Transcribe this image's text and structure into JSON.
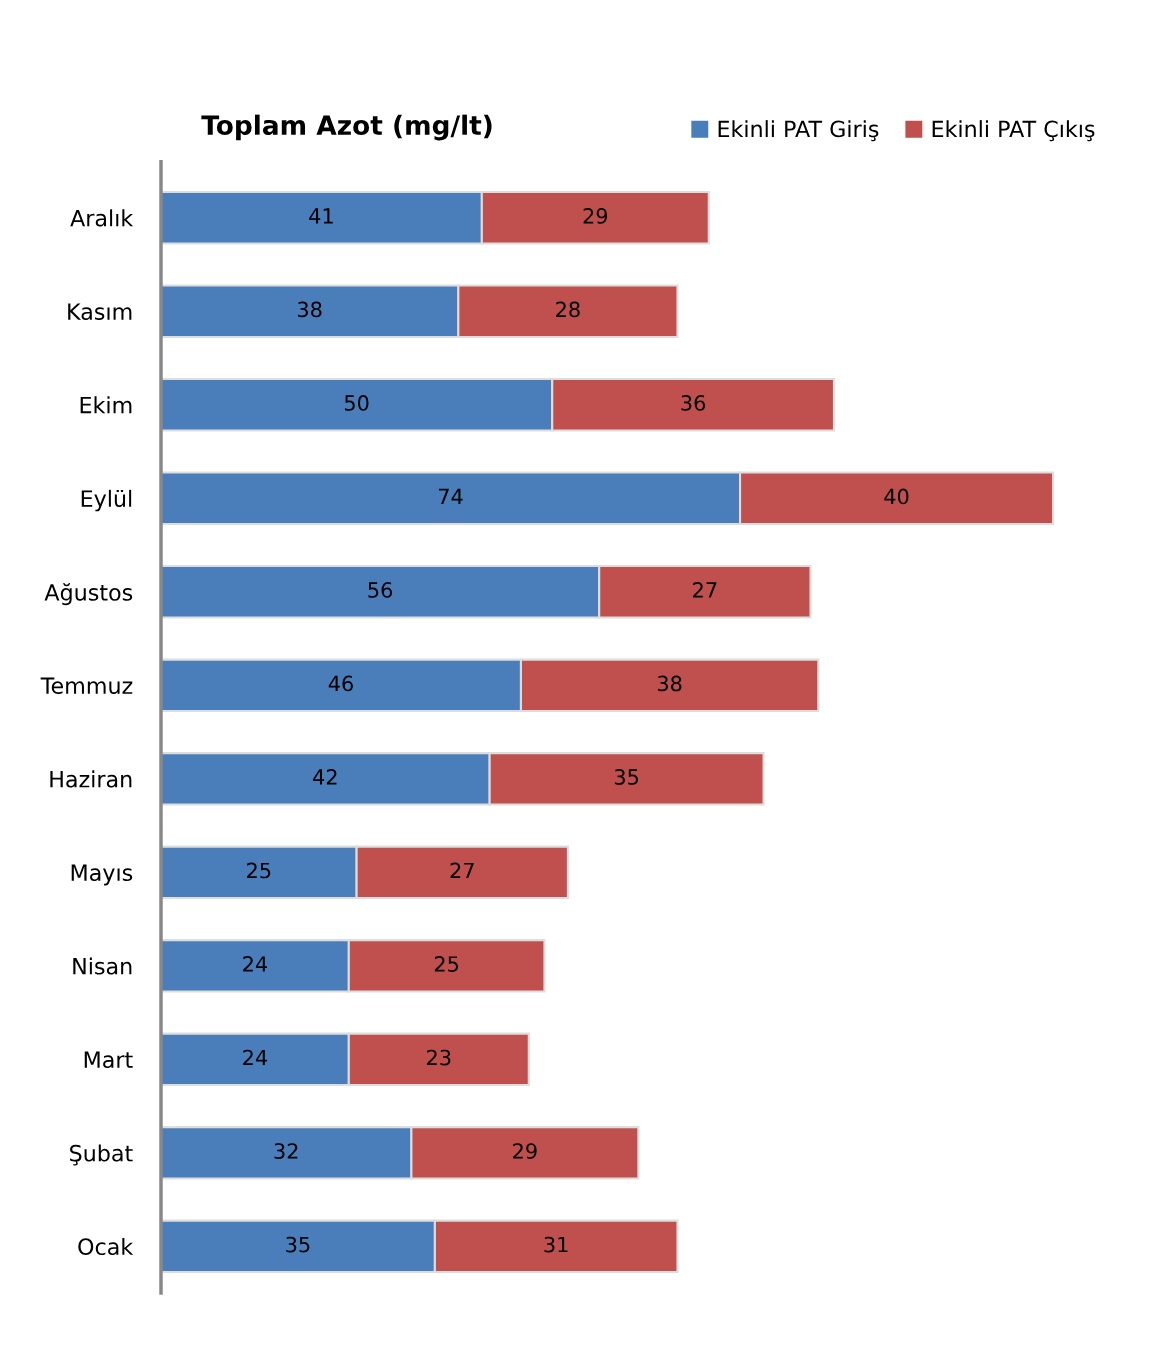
{
  "chart_data": {
    "type": "bar",
    "orientation": "horizontal",
    "stacked": true,
    "title": "Toplam Azot (mg/lt)",
    "categories": [
      "Aralık",
      "Kasım",
      "Ekim",
      "Eylül",
      "Ağustos",
      "Temmuz",
      "Haziran",
      "Mayıs",
      "Nisan",
      "Mart",
      "Şubat",
      "Ocak"
    ],
    "series": [
      {
        "name": "Ekinli PAT Giriş",
        "color": "#4a7ebb",
        "values": [
          41,
          38,
          50,
          74,
          56,
          46,
          42,
          25,
          24,
          24,
          32,
          35
        ]
      },
      {
        "name": "Ekinli PAT Çıkış",
        "color": "#c0504d",
        "values": [
          29,
          28,
          36,
          40,
          27,
          38,
          35,
          27,
          25,
          23,
          29,
          31
        ]
      }
    ],
    "data_labels": true,
    "legend": "top right",
    "grid": false,
    "tick_labels": "y"
  }
}
